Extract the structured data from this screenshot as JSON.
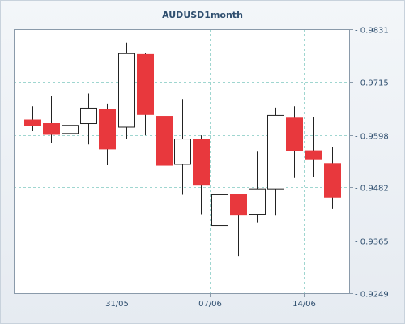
{
  "chart_data": {
    "type": "candlestick",
    "title": "AUDUSD1month",
    "xlabel": "",
    "ylabel": "",
    "y_ticks": [
      "0.9831",
      "0.9715",
      "0.9598",
      "0.9482",
      "0.9365",
      "0.9249"
    ],
    "ylim": [
      0.9249,
      0.9831
    ],
    "x_ticks": [
      {
        "label": "31/05",
        "index": 4.5
      },
      {
        "label": "07/06",
        "index": 9.5
      },
      {
        "label": "14/06",
        "index": 14.5
      }
    ],
    "grid": true,
    "candles": [
      {
        "open": 0.9631,
        "high": 0.9661,
        "low": 0.9606,
        "close": 0.9619
      },
      {
        "open": 0.9623,
        "high": 0.9683,
        "low": 0.9581,
        "close": 0.9599
      },
      {
        "open": 0.9601,
        "high": 0.9665,
        "low": 0.9515,
        "close": 0.9619
      },
      {
        "open": 0.9623,
        "high": 0.9689,
        "low": 0.9577,
        "close": 0.9657
      },
      {
        "open": 0.9655,
        "high": 0.9667,
        "low": 0.9531,
        "close": 0.9567
      },
      {
        "open": 0.9615,
        "high": 0.9801,
        "low": 0.9589,
        "close": 0.9777
      },
      {
        "open": 0.9775,
        "high": 0.9779,
        "low": 0.9597,
        "close": 0.9643
      },
      {
        "open": 0.9639,
        "high": 0.9651,
        "low": 0.9501,
        "close": 0.9531
      },
      {
        "open": 0.9533,
        "high": 0.9677,
        "low": 0.9466,
        "close": 0.9589
      },
      {
        "open": 0.9589,
        "high": 0.9597,
        "low": 0.9423,
        "close": 0.9487
      },
      {
        "open": 0.9398,
        "high": 0.9474,
        "low": 0.9385,
        "close": 0.9466
      },
      {
        "open": 0.9466,
        "high": 0.9467,
        "low": 0.9331,
        "close": 0.9421
      },
      {
        "open": 0.9423,
        "high": 0.9561,
        "low": 0.9405,
        "close": 0.9479
      },
      {
        "open": 0.9479,
        "high": 0.9658,
        "low": 0.942,
        "close": 0.9641
      },
      {
        "open": 0.9635,
        "high": 0.9661,
        "low": 0.9503,
        "close": 0.9563
      },
      {
        "open": 0.9563,
        "high": 0.9638,
        "low": 0.9505,
        "close": 0.9545
      },
      {
        "open": 0.9535,
        "high": 0.9571,
        "low": 0.9435,
        "close": 0.9461
      }
    ],
    "colors": {
      "up_body": "#ffffff",
      "down_body": "#e8383d",
      "outline": "#222222",
      "grid": "#9fd6d0",
      "axis": "#8a9aaa",
      "plot_bg": "#ffffff",
      "text": "#2f4f6f"
    }
  }
}
